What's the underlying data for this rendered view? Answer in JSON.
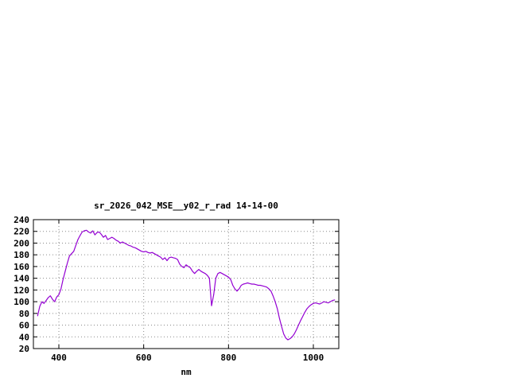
{
  "chart_data": {
    "type": "line",
    "title": "sr_2026_042_MSE__y02_r_rad 14-14-00",
    "xlabel": "nm",
    "ylabel": "",
    "xlim": [
      340,
      1060
    ],
    "ylim": [
      20,
      240
    ],
    "xticks": [
      400,
      600,
      800,
      1000
    ],
    "yticks": [
      20,
      40,
      60,
      80,
      100,
      120,
      140,
      160,
      180,
      200,
      220,
      240
    ],
    "grid": true,
    "legend": "none",
    "line_color": "#9400d3",
    "x": [
      350,
      355,
      360,
      365,
      370,
      375,
      380,
      385,
      390,
      395,
      400,
      405,
      410,
      415,
      420,
      425,
      430,
      435,
      440,
      445,
      450,
      455,
      460,
      465,
      470,
      475,
      480,
      485,
      490,
      495,
      500,
      505,
      510,
      515,
      520,
      525,
      530,
      535,
      540,
      545,
      550,
      555,
      560,
      565,
      570,
      575,
      580,
      585,
      590,
      595,
      600,
      605,
      610,
      615,
      620,
      625,
      630,
      635,
      640,
      645,
      650,
      655,
      660,
      665,
      670,
      675,
      680,
      685,
      690,
      695,
      700,
      705,
      710,
      715,
      720,
      725,
      730,
      735,
      740,
      745,
      750,
      755,
      760,
      765,
      770,
      775,
      780,
      785,
      790,
      795,
      800,
      805,
      810,
      815,
      820,
      825,
      830,
      835,
      840,
      845,
      850,
      855,
      860,
      865,
      870,
      875,
      880,
      885,
      890,
      895,
      900,
      905,
      910,
      915,
      920,
      925,
      930,
      935,
      940,
      945,
      950,
      955,
      960,
      965,
      970,
      975,
      980,
      985,
      990,
      995,
      1000,
      1005,
      1010,
      1015,
      1020,
      1025,
      1030,
      1035,
      1040,
      1045,
      1050
    ],
    "y": [
      76,
      92,
      100,
      97,
      102,
      107,
      110,
      104,
      100,
      108,
      112,
      122,
      138,
      152,
      166,
      178,
      182,
      186,
      196,
      206,
      213,
      219,
      221,
      222,
      219,
      217,
      221,
      214,
      218,
      219,
      215,
      210,
      213,
      206,
      208,
      210,
      208,
      205,
      203,
      200,
      202,
      200,
      198,
      196,
      195,
      193,
      192,
      190,
      188,
      186,
      185,
      186,
      184,
      183,
      184,
      182,
      180,
      178,
      176,
      172,
      175,
      170,
      175,
      176,
      175,
      174,
      172,
      164,
      160,
      158,
      163,
      160,
      158,
      152,
      148,
      152,
      155,
      152,
      150,
      148,
      145,
      140,
      93,
      112,
      140,
      148,
      150,
      148,
      146,
      144,
      142,
      138,
      128,
      122,
      118,
      122,
      128,
      130,
      131,
      132,
      131,
      130,
      130,
      129,
      128,
      128,
      127,
      126,
      125,
      122,
      118,
      110,
      100,
      88,
      72,
      58,
      45,
      38,
      35,
      37,
      40,
      45,
      52,
      60,
      68,
      75,
      82,
      88,
      92,
      95,
      97,
      98,
      97,
      96,
      98,
      100,
      99,
      98,
      100,
      102,
      103
    ]
  }
}
